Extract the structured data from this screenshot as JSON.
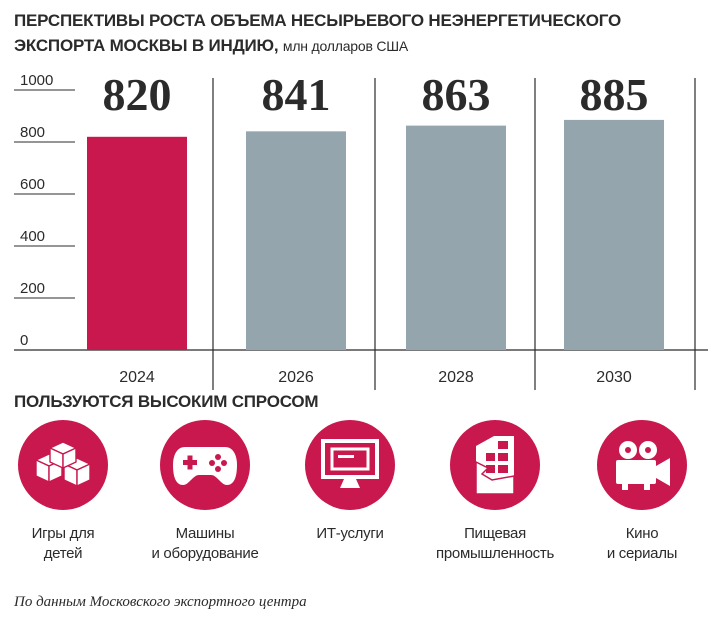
{
  "title": {
    "main": "ПЕРСПЕКТИВЫ РОСТА ОБЪЕМА НЕСЫРЬЕВОГО НЕЭНЕРГЕТИЧЕСКОГО ЭКСПОРТА МОСКВЫ В ИНДИЮ,",
    "unit": "млн долларов США"
  },
  "chart_data": {
    "type": "bar",
    "title": "ПЕРСПЕКТИВЫ РОСТА ОБЪЕМА НЕСЫРЬЕВОГО НЕЭНЕРГЕТИЧЕСКОГО ЭКСПОРТА МОСКВЫ В ИНДИЮ, млн долларов США",
    "categories": [
      "2024",
      "2026",
      "2028",
      "2030"
    ],
    "values": [
      820,
      841,
      863,
      885
    ],
    "labels": [
      "820",
      "841",
      "863",
      "885"
    ],
    "colors": [
      "#c8184e",
      "#95a5ad",
      "#95a5ad",
      "#95a5ad"
    ],
    "ylim": [
      0,
      1000
    ],
    "yticks": [
      "0",
      "200",
      "400",
      "600",
      "800",
      "1000"
    ],
    "xlabel": "",
    "ylabel": "",
    "grid": false
  },
  "section": {
    "title": "ПОЛЬЗУЮТСЯ ВЫСОКИМ СПРОСОМ"
  },
  "categories": [
    {
      "icon": "toy-blocks-icon",
      "label": "Игры для\nдетей"
    },
    {
      "icon": "gamepad-icon",
      "label": "Машины\nи оборудование"
    },
    {
      "icon": "monitor-icon",
      "label": "ИТ-услуги"
    },
    {
      "icon": "chocolate-bar-icon",
      "label": "Пищевая\nпромышленность"
    },
    {
      "icon": "movie-camera-icon",
      "label": "Кино\nи сериалы"
    }
  ],
  "source": "По данным Московского экспортного центра",
  "colors": {
    "accent": "#c8184e",
    "bar": "#95a5ad",
    "text": "#2b2b2b"
  }
}
